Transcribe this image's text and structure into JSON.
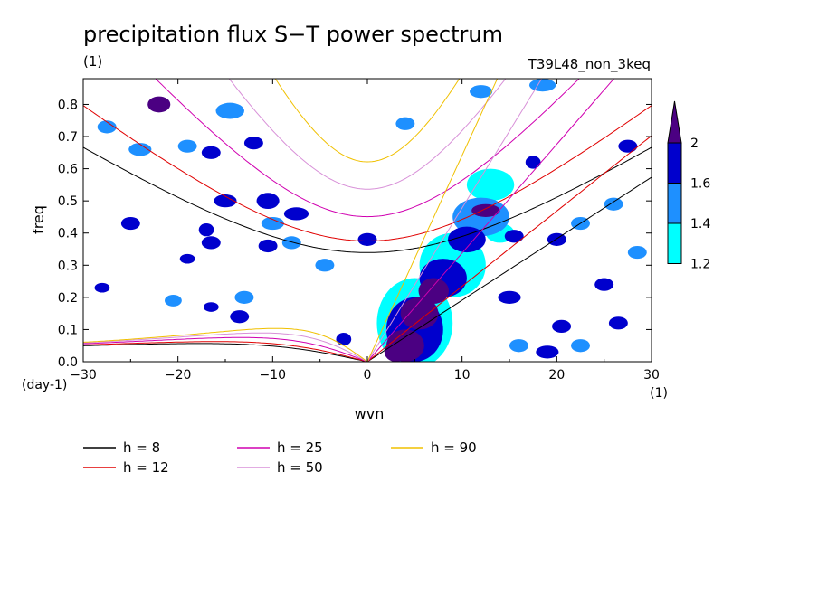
{
  "chart_data": {
    "type": "contour",
    "title": "precipitation flux S−T power spectrum",
    "subtitle_left": "(1)",
    "subtitle_right": "T39L48_non_3keq",
    "xlabel": "wvn",
    "ylabel": "freq",
    "x_unit": "(1)",
    "y_unit": "(day-1)",
    "xlim": [
      -30,
      30
    ],
    "ylim": [
      0,
      0.88
    ],
    "x_ticks": [
      -30,
      -20,
      -10,
      0,
      10,
      20,
      30
    ],
    "x_tick_labels": [
      "−30",
      "−20",
      "−10",
      "0",
      "10",
      "20",
      "30"
    ],
    "y_ticks": [
      0,
      0.1,
      0.2,
      0.3,
      0.4,
      0.5,
      0.6,
      0.7,
      0.8
    ],
    "y_tick_labels": [
      "0.0",
      "0.1",
      "0.2",
      "0.3",
      "0.4",
      "0.5",
      "0.6",
      "0.7",
      "0.8"
    ],
    "colorbar": {
      "levels": [
        1.2,
        1.4,
        1.6,
        2
      ],
      "labels": [
        "1.2",
        "1.4",
        "1.6",
        "2"
      ],
      "colors": [
        "#00ffff",
        "#1e90ff",
        "#0000cd",
        "#4b0082"
      ]
    },
    "dispersion_curves": [
      {
        "label": "h =  8",
        "h": 8,
        "color": "#000000"
      },
      {
        "label": "h = 12",
        "h": 12,
        "color": "#e00000"
      },
      {
        "label": "h = 25",
        "h": 25,
        "color": "#d000b0"
      },
      {
        "label": "h = 50",
        "h": 50,
        "color": "#d890d8"
      },
      {
        "label": "h = 90",
        "h": 90,
        "color": "#f0c000"
      }
    ],
    "features": [
      {
        "kind": "blob",
        "x": 4,
        "y": 0.05,
        "rx": 2,
        "ry": 0.05,
        "level": 4
      },
      {
        "kind": "blob",
        "x": 5.5,
        "y": 0.15,
        "rx": 2,
        "ry": 0.05,
        "level": 4
      },
      {
        "kind": "blob",
        "x": 7,
        "y": 0.22,
        "rx": 1.6,
        "ry": 0.04,
        "level": 4
      },
      {
        "kind": "blob",
        "x": 3,
        "y": 0.03,
        "rx": 1.2,
        "ry": 0.03,
        "level": 4
      },
      {
        "kind": "blob",
        "x": 5,
        "y": 0.1,
        "rx": 3,
        "ry": 0.1,
        "level": 3
      },
      {
        "kind": "blob",
        "x": 8,
        "y": 0.26,
        "rx": 2.5,
        "ry": 0.06,
        "level": 3
      },
      {
        "kind": "blob",
        "x": 12.5,
        "y": 0.47,
        "rx": 1.5,
        "ry": 0.02,
        "level": 4
      },
      {
        "kind": "blob",
        "x": 10.5,
        "y": 0.38,
        "rx": 2,
        "ry": 0.04,
        "level": 3
      },
      {
        "kind": "blob",
        "x": 5,
        "y": 0.12,
        "rx": 4,
        "ry": 0.14,
        "level": 1
      },
      {
        "kind": "blob",
        "x": 9,
        "y": 0.3,
        "rx": 3.5,
        "ry": 0.1,
        "level": 1
      },
      {
        "kind": "blob",
        "x": 12,
        "y": 0.45,
        "rx": 3,
        "ry": 0.06,
        "level": 2
      },
      {
        "kind": "blob",
        "x": 13,
        "y": 0.55,
        "rx": 2.5,
        "ry": 0.05,
        "level": 1
      },
      {
        "kind": "blob",
        "x": 14,
        "y": 0.4,
        "rx": 1.5,
        "ry": 0.03,
        "level": 1
      },
      {
        "kind": "blob",
        "x": 12,
        "y": 0.84,
        "rx": 1.2,
        "ry": 0.02,
        "level": 2
      },
      {
        "kind": "blob",
        "x": 18.5,
        "y": 0.86,
        "rx": 1.4,
        "ry": 0.02,
        "level": 2
      },
      {
        "kind": "blob",
        "x": -22,
        "y": 0.8,
        "rx": 1.2,
        "ry": 0.025,
        "level": 4
      },
      {
        "kind": "blob",
        "x": -14.5,
        "y": 0.78,
        "rx": 1.5,
        "ry": 0.025,
        "level": 2
      },
      {
        "kind": "blob",
        "x": -16.5,
        "y": 0.65,
        "rx": 1,
        "ry": 0.02,
        "level": 3
      },
      {
        "kind": "blob",
        "x": -12,
        "y": 0.68,
        "rx": 1,
        "ry": 0.02,
        "level": 3
      },
      {
        "kind": "blob",
        "x": -15,
        "y": 0.5,
        "rx": 1.2,
        "ry": 0.02,
        "level": 3
      },
      {
        "kind": "blob",
        "x": -10.5,
        "y": 0.5,
        "rx": 1.2,
        "ry": 0.025,
        "level": 3
      },
      {
        "kind": "blob",
        "x": -7.5,
        "y": 0.46,
        "rx": 1.3,
        "ry": 0.02,
        "level": 3
      },
      {
        "kind": "blob",
        "x": -25,
        "y": 0.43,
        "rx": 1,
        "ry": 0.02,
        "level": 3
      },
      {
        "kind": "blob",
        "x": -17,
        "y": 0.41,
        "rx": 0.8,
        "ry": 0.02,
        "level": 3
      },
      {
        "kind": "blob",
        "x": -10.5,
        "y": 0.36,
        "rx": 1,
        "ry": 0.02,
        "level": 3
      },
      {
        "kind": "blob",
        "x": -16.5,
        "y": 0.37,
        "rx": 1,
        "ry": 0.02,
        "level": 3
      },
      {
        "kind": "blob",
        "x": 0,
        "y": 0.38,
        "rx": 1,
        "ry": 0.02,
        "level": 3
      },
      {
        "kind": "blob",
        "x": -19,
        "y": 0.32,
        "rx": 0.8,
        "ry": 0.015,
        "level": 3
      },
      {
        "kind": "blob",
        "x": -28,
        "y": 0.23,
        "rx": 0.8,
        "ry": 0.015,
        "level": 3
      },
      {
        "kind": "blob",
        "x": -16.5,
        "y": 0.17,
        "rx": 0.8,
        "ry": 0.015,
        "level": 3
      },
      {
        "kind": "blob",
        "x": -13.5,
        "y": 0.14,
        "rx": 1,
        "ry": 0.02,
        "level": 3
      },
      {
        "kind": "blob",
        "x": 15.5,
        "y": 0.39,
        "rx": 1,
        "ry": 0.02,
        "level": 3
      },
      {
        "kind": "blob",
        "x": 17.5,
        "y": 0.62,
        "rx": 0.8,
        "ry": 0.02,
        "level": 3
      },
      {
        "kind": "blob",
        "x": 27.5,
        "y": 0.67,
        "rx": 1,
        "ry": 0.02,
        "level": 3
      },
      {
        "kind": "blob",
        "x": 20,
        "y": 0.38,
        "rx": 1,
        "ry": 0.02,
        "level": 3
      },
      {
        "kind": "blob",
        "x": 15,
        "y": 0.2,
        "rx": 1.2,
        "ry": 0.02,
        "level": 3
      },
      {
        "kind": "blob",
        "x": 25,
        "y": 0.24,
        "rx": 1,
        "ry": 0.02,
        "level": 3
      },
      {
        "kind": "blob",
        "x": 26.5,
        "y": 0.12,
        "rx": 1,
        "ry": 0.02,
        "level": 3
      },
      {
        "kind": "blob",
        "x": 19,
        "y": 0.03,
        "rx": 1.2,
        "ry": 0.02,
        "level": 3
      },
      {
        "kind": "blob",
        "x": 20.5,
        "y": 0.11,
        "rx": 1,
        "ry": 0.02,
        "level": 3
      },
      {
        "kind": "blob",
        "x": -2.5,
        "y": 0.07,
        "rx": 0.8,
        "ry": 0.02,
        "level": 3
      },
      {
        "kind": "blob",
        "x": -27.5,
        "y": 0.73,
        "rx": 1,
        "ry": 0.02,
        "level": 2
      },
      {
        "kind": "blob",
        "x": -24,
        "y": 0.66,
        "rx": 1.2,
        "ry": 0.02,
        "level": 2
      },
      {
        "kind": "blob",
        "x": -19,
        "y": 0.67,
        "rx": 1,
        "ry": 0.02,
        "level": 2
      },
      {
        "kind": "blob",
        "x": -10,
        "y": 0.43,
        "rx": 1.2,
        "ry": 0.02,
        "level": 2
      },
      {
        "kind": "blob",
        "x": -8,
        "y": 0.37,
        "rx": 1,
        "ry": 0.02,
        "level": 2
      },
      {
        "kind": "blob",
        "x": -4.5,
        "y": 0.3,
        "rx": 1,
        "ry": 0.02,
        "level": 2
      },
      {
        "kind": "blob",
        "x": -13,
        "y": 0.2,
        "rx": 1,
        "ry": 0.02,
        "level": 2
      },
      {
        "kind": "blob",
        "x": -20.5,
        "y": 0.19,
        "rx": 0.9,
        "ry": 0.018,
        "level": 2
      },
      {
        "kind": "blob",
        "x": 22.5,
        "y": 0.05,
        "rx": 1,
        "ry": 0.02,
        "level": 2
      },
      {
        "kind": "blob",
        "x": 28.5,
        "y": 0.34,
        "rx": 1,
        "ry": 0.02,
        "level": 2
      },
      {
        "kind": "blob",
        "x": 26,
        "y": 0.49,
        "rx": 1,
        "ry": 0.02,
        "level": 2
      },
      {
        "kind": "blob",
        "x": 22.5,
        "y": 0.43,
        "rx": 1,
        "ry": 0.02,
        "level": 2
      },
      {
        "kind": "blob",
        "x": 4,
        "y": 0.74,
        "rx": 1,
        "ry": 0.02,
        "level": 2
      },
      {
        "kind": "blob",
        "x": 16,
        "y": 0.05,
        "rx": 1,
        "ry": 0.02,
        "level": 2
      }
    ]
  }
}
